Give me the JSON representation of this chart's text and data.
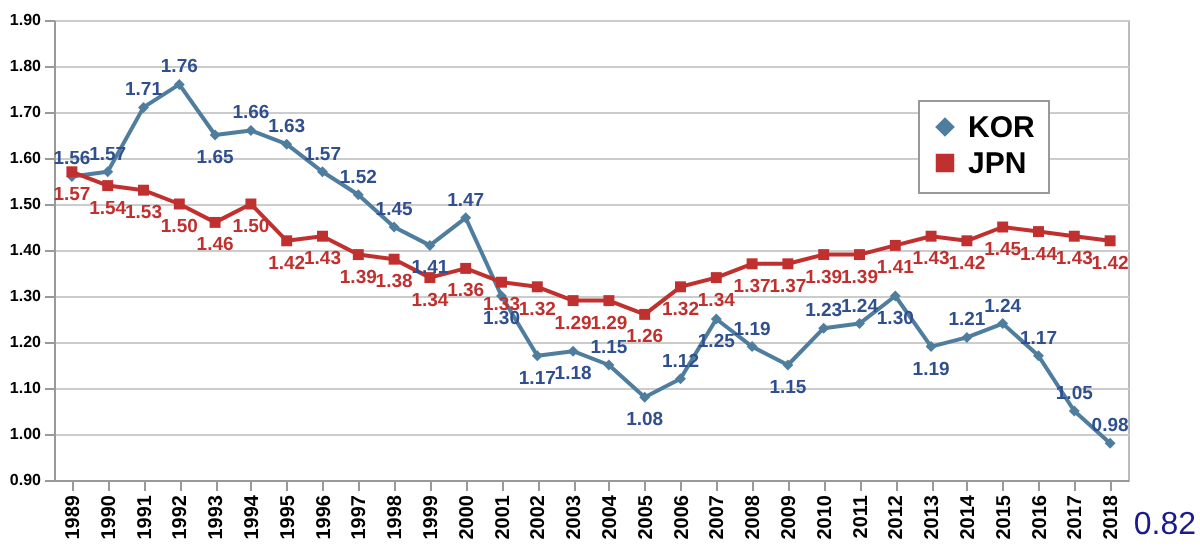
{
  "chart_data": {
    "type": "line",
    "categories": [
      "1989",
      "1990",
      "1991",
      "1992",
      "1993",
      "1994",
      "1995",
      "1996",
      "1997",
      "1998",
      "1999",
      "2000",
      "2001",
      "2002",
      "2003",
      "2004",
      "2005",
      "2006",
      "2007",
      "2008",
      "2009",
      "2010",
      "2011",
      "2012",
      "2013",
      "2014",
      "2015",
      "2016",
      "2017",
      "2018"
    ],
    "series": [
      {
        "name": "KOR",
        "color": "#4f7d9e",
        "marker": "diamond",
        "values": [
          1.56,
          1.57,
          1.71,
          1.76,
          1.65,
          1.66,
          1.63,
          1.57,
          1.52,
          1.45,
          1.41,
          1.47,
          1.3,
          1.17,
          1.18,
          1.15,
          1.08,
          1.12,
          1.25,
          1.19,
          1.15,
          1.23,
          1.24,
          1.3,
          1.19,
          1.21,
          1.24,
          1.17,
          1.05,
          0.98
        ],
        "value_labels": [
          "1.56",
          "1.57",
          "1.71",
          "1.76",
          "1.65",
          "1.66",
          "1.63",
          "1.57",
          "1.52",
          "1.45",
          "1.41",
          "1.47",
          "1.30",
          "1.17",
          "1.18",
          "1.15",
          "1.08",
          "1.12",
          "1.25",
          "1.19",
          "1.15",
          "1.23",
          "1.24",
          "1.30",
          "1.19",
          "1.21",
          "1.24",
          "1.17",
          "1.05",
          "0.98"
        ]
      },
      {
        "name": "JPN",
        "color": "#c0302f",
        "marker": "square",
        "values": [
          1.57,
          1.54,
          1.53,
          1.5,
          1.46,
          1.5,
          1.42,
          1.43,
          1.39,
          1.38,
          1.34,
          1.36,
          1.33,
          1.32,
          1.29,
          1.29,
          1.26,
          1.32,
          1.34,
          1.37,
          1.37,
          1.39,
          1.39,
          1.41,
          1.43,
          1.42,
          1.45,
          1.44,
          1.43,
          1.42
        ],
        "value_labels": [
          "1.57",
          "1.54",
          "1.53",
          "1.50",
          "1.46",
          "1.50",
          "1.42",
          "1.43",
          "1.39",
          "1.38",
          "1.34",
          "1.36",
          "1.33",
          "1.32",
          "1.29",
          "1.29",
          "1.26",
          "1.32",
          "1.34",
          "1.37",
          "1.37",
          "1.39",
          "1.39",
          "1.41",
          "1.43",
          "1.42",
          "1.45",
          "1.44",
          "1.43",
          "1.42"
        ]
      }
    ],
    "ylim": [
      0.9,
      1.9
    ],
    "yticks": [
      {
        "value": 0.9,
        "label": "0.90"
      },
      {
        "value": 1.0,
        "label": "1.00"
      },
      {
        "value": 1.1,
        "label": "1.10"
      },
      {
        "value": 1.2,
        "label": "1.20"
      },
      {
        "value": 1.3,
        "label": "1.30"
      },
      {
        "value": 1.4,
        "label": "1.40"
      },
      {
        "value": 1.5,
        "label": "1.50"
      },
      {
        "value": 1.6,
        "label": "1.60"
      },
      {
        "value": 1.7,
        "label": "1.70"
      },
      {
        "value": 1.8,
        "label": "1.80"
      },
      {
        "value": 1.9,
        "label": "1.90"
      }
    ],
    "grid": "y",
    "legend": "top right",
    "annotations": [
      "0.82"
    ]
  }
}
